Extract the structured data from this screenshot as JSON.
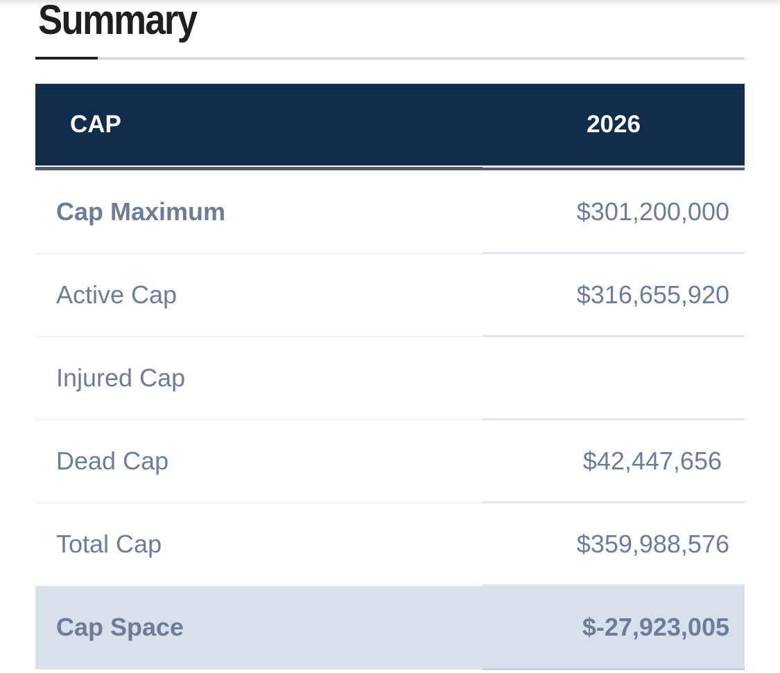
{
  "summary": {
    "title": "Summary"
  },
  "table": {
    "header": {
      "label": "CAP",
      "year": "2026"
    },
    "rows": [
      {
        "label": "Cap Maximum",
        "value": "$301,200,000",
        "bold": true
      },
      {
        "label": "Active Cap",
        "value": "$316,655,920",
        "bold": false
      },
      {
        "label": "Injured Cap",
        "value": "",
        "bold": false
      },
      {
        "label": "Dead Cap",
        "value": "$42,447,656",
        "bold": false
      },
      {
        "label": "Total Cap",
        "value": "$359,988,576",
        "bold": false
      },
      {
        "label": "Cap Space",
        "value": "$-27,923,005",
        "bold": true
      }
    ]
  },
  "colors": {
    "header_bg": "#122c4b",
    "text_muted": "#6e7d97",
    "highlight_row_bg": "#d8e0ec"
  }
}
